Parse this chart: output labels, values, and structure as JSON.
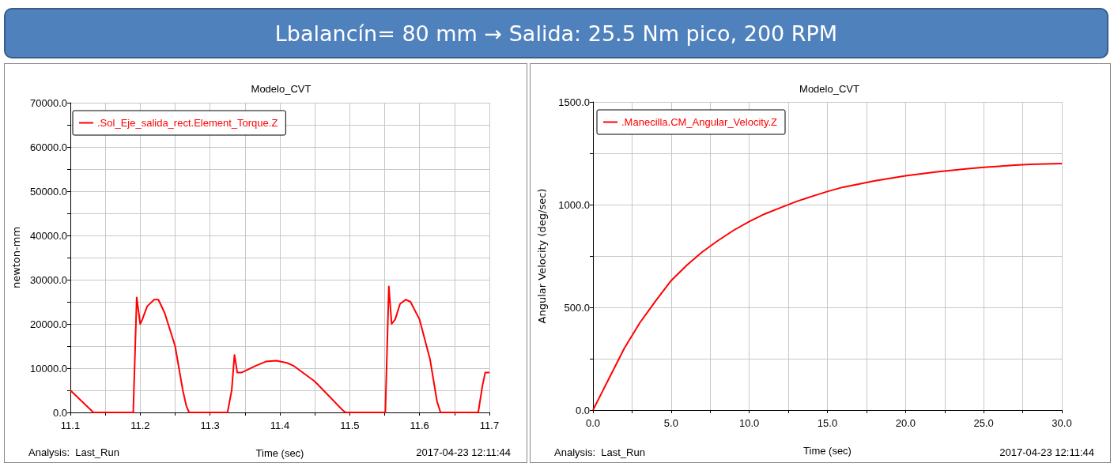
{
  "chart_data": [
    {
      "type": "line",
      "title": "Modelo_CVT",
      "subtitle": "Lbalancín= 80 mm  →  Salida: 25.5 Nm pico, 200 RPM",
      "xlabel": "Time (sec)",
      "ylabel": "newton-mm",
      "annotations": [
        "Analysis:  Last_Run",
        "2017-04-23 12:11:44"
      ],
      "legend": "top left",
      "grid": true,
      "marker": "none",
      "line_style": "solid",
      "xlim": [
        11.1,
        11.7
      ],
      "xticks": [
        11.1,
        {
          "value": 11.15,
          "label": null
        },
        11.2,
        {
          "value": 11.25,
          "label": null
        },
        11.3,
        {
          "value": 11.35,
          "label": null
        },
        11.4,
        {
          "value": 11.45,
          "label": null
        },
        11.5,
        {
          "value": 11.55,
          "label": null
        },
        11.6,
        {
          "value": 11.65,
          "label": null
        },
        11.7
      ],
      "ylim": [
        0,
        70000
      ],
      "yticks": [
        {
          "value": 0,
          "label": "0.0"
        },
        {
          "value": 5000,
          "label": null
        },
        {
          "value": 10000,
          "label": "10000.0"
        },
        {
          "value": 15000,
          "label": null
        },
        {
          "value": 20000,
          "label": "20000.0"
        },
        {
          "value": 25000,
          "label": null
        },
        {
          "value": 30000,
          "label": "30000.0"
        },
        {
          "value": 35000,
          "label": null
        },
        {
          "value": 40000,
          "label": "40000.0"
        },
        {
          "value": 45000,
          "label": null
        },
        {
          "value": 50000,
          "label": "50000.0"
        },
        {
          "value": 55000,
          "label": null
        },
        {
          "value": 60000,
          "label": "60000.0"
        },
        {
          "value": 65000,
          "label": null
        },
        {
          "value": 70000,
          "label": "70000.0"
        }
      ],
      "series": [
        {
          "name": ".Sol_Eje_salida_rect.Element_Torque.Z",
          "color": "#ff0000",
          "x": [
            11.1,
            11.133,
            11.19,
            11.195,
            11.2,
            11.203,
            11.21,
            11.22,
            11.226,
            11.235,
            11.25,
            11.261,
            11.266,
            11.27,
            11.325,
            11.331,
            11.335,
            11.339,
            11.345,
            11.365,
            11.38,
            11.395,
            11.41,
            11.42,
            11.45,
            11.49,
            11.494,
            11.551,
            11.556,
            11.56,
            11.565,
            11.572,
            11.58,
            11.587,
            11.6,
            11.615,
            11.625,
            11.63,
            11.684,
            11.69,
            11.694,
            11.7
          ],
          "values": [
            5000,
            0,
            0,
            26000,
            20000,
            21000,
            24000,
            25500,
            25500,
            22500,
            15000,
            5000,
            1500,
            0,
            0,
            5000,
            13000,
            9000,
            9000,
            10500,
            11500,
            11700,
            11200,
            10500,
            7000,
            500,
            0,
            0,
            28500,
            20000,
            21000,
            24500,
            25500,
            25000,
            21000,
            12000,
            2500,
            0,
            0,
            6000,
            9000,
            9000
          ]
        }
      ]
    },
    {
      "type": "line",
      "title": "Modelo_CVT",
      "xlabel": "Time (sec)",
      "ylabel": "Angular Velocity (deg/sec)",
      "annotations": [
        "Analysis:  Last_Run",
        "2017-04-23 12:11:44"
      ],
      "legend": "top left",
      "grid": true,
      "marker": "none",
      "line_style": "solid",
      "xlim": [
        0,
        30
      ],
      "xticks": [
        {
          "value": 0,
          "label": "0.0"
        },
        {
          "value": 2.5,
          "label": null
        },
        {
          "value": 5,
          "label": "5.0"
        },
        {
          "value": 7.5,
          "label": null
        },
        {
          "value": 10,
          "label": "10.0"
        },
        {
          "value": 12.5,
          "label": null
        },
        {
          "value": 15,
          "label": "15.0"
        },
        {
          "value": 17.5,
          "label": null
        },
        {
          "value": 20,
          "label": "20.0"
        },
        {
          "value": 22.5,
          "label": null
        },
        {
          "value": 25,
          "label": "25.0"
        },
        {
          "value": 27.5,
          "label": null
        },
        {
          "value": 30,
          "label": "30.0"
        }
      ],
      "ylim": [
        0,
        1500
      ],
      "yticks": [
        {
          "value": 0,
          "label": "0.0"
        },
        {
          "value": 250,
          "label": null
        },
        {
          "value": 500,
          "label": "500.0"
        },
        {
          "value": 750,
          "label": null
        },
        {
          "value": 1000,
          "label": "1000.0"
        },
        {
          "value": 1250,
          "label": null
        },
        {
          "value": 1500,
          "label": "1500.0"
        }
      ],
      "series": [
        {
          "name": ".Manecilla.CM_Angular_Velocity.Z",
          "color": "#ff0000",
          "x": [
            0,
            1,
            2,
            3,
            4,
            5,
            6,
            7,
            8,
            9,
            10,
            11,
            12,
            13,
            14,
            15,
            16,
            17,
            18,
            19,
            20,
            21,
            22,
            23,
            24,
            25,
            26,
            27,
            28,
            29,
            30
          ],
          "values": [
            0,
            150,
            300,
            425,
            530,
            630,
            705,
            770,
            825,
            875,
            918,
            955,
            985,
            1015,
            1040,
            1064,
            1085,
            1100,
            1115,
            1128,
            1140,
            1150,
            1160,
            1167,
            1175,
            1182,
            1187,
            1192,
            1196,
            1198,
            1200
          ]
        }
      ]
    }
  ]
}
